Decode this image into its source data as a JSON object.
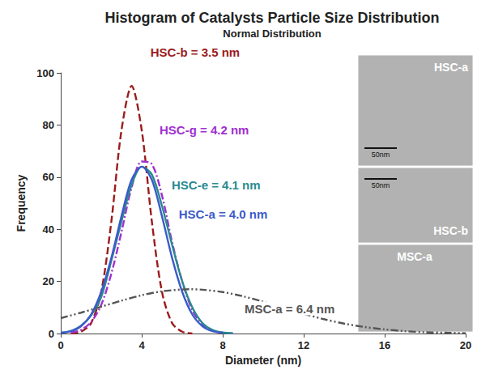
{
  "chart_data": {
    "type": "line",
    "title": "Histogram of Catalysts Particle Size Distribution",
    "subtitle": "Normal Distribution",
    "x_label": "Diameter (nm)",
    "y_label": "Frequency",
    "xlim": [
      0,
      20
    ],
    "xticks": [
      0,
      4,
      8,
      12,
      16,
      20
    ],
    "ylim": [
      0,
      100
    ],
    "yticks": [
      0,
      20,
      40,
      60,
      80,
      100
    ],
    "grid": false,
    "series": [
      {
        "name": "HSC-b",
        "color": "#9b1c1c",
        "line_style": "dashed",
        "x": [
          0.5,
          1.0,
          1.5,
          2.0,
          2.5,
          3.0,
          3.5,
          4.0,
          4.5,
          5.0,
          5.5,
          6.0,
          6.5
        ],
        "values": [
          0,
          0.7,
          4,
          16,
          43,
          78,
          95,
          78,
          43,
          16,
          4,
          0.7,
          0
        ]
      },
      {
        "name": "HSC-g",
        "color": "#a030d0",
        "line_style": "dashdot",
        "x": [
          0.5,
          1.0,
          1.5,
          2.0,
          2.5,
          3.0,
          3.5,
          4.0,
          4.5,
          5.0,
          5.5,
          6.0,
          6.5,
          7.0,
          7.5,
          8.0,
          8.5
        ],
        "values": [
          0.4,
          1.4,
          4.4,
          11,
          23,
          39,
          56,
          66,
          65,
          53,
          35,
          20,
          9,
          3.5,
          1.1,
          0.3,
          0.1
        ]
      },
      {
        "name": "HSC-e",
        "color": "#2a8a8f",
        "line_style": "solid",
        "x": [
          0,
          0.5,
          1.0,
          1.5,
          2.0,
          2.5,
          3.0,
          3.5,
          4.0,
          4.5,
          5.0,
          5.5,
          6.0,
          6.5,
          7.0,
          7.5,
          8.0,
          8.5
        ],
        "values": [
          0.3,
          1,
          3,
          7,
          14,
          28,
          43,
          57,
          64,
          61,
          49,
          34,
          20,
          10,
          4,
          1.4,
          0.4,
          0.1
        ]
      },
      {
        "name": "HSC-a",
        "color": "#3b5bc9",
        "line_style": "solid",
        "x": [
          0,
          0.5,
          1.0,
          1.5,
          2.0,
          2.5,
          3.0,
          3.5,
          4.0,
          4.5,
          5.0,
          5.5,
          6.0,
          6.5,
          7.0,
          7.5,
          8.0
        ],
        "values": [
          0.3,
          0.9,
          2.8,
          7.3,
          16,
          29,
          45,
          59,
          64,
          59,
          45,
          29,
          16,
          7.3,
          2.8,
          0.9,
          0.3
        ]
      },
      {
        "name": "MSC-a",
        "color": "#555555",
        "line_style": "dashdotdot",
        "x": [
          0,
          1,
          2,
          3,
          4,
          5,
          6,
          6.4,
          7,
          8,
          9,
          10,
          11,
          12,
          13,
          14,
          15,
          16,
          17,
          18,
          19,
          20
        ],
        "values": [
          5.9,
          8.0,
          10.3,
          12.6,
          14.7,
          16.2,
          16.9,
          17,
          16.8,
          15.9,
          14.3,
          12.2,
          9.8,
          7.6,
          5.5,
          3.8,
          2.5,
          1.6,
          0.9,
          0.5,
          0.3,
          0.1
        ]
      }
    ],
    "annotations": [
      {
        "text": "HSC-b = 3.5 nm",
        "series": "HSC-b",
        "x": 4.35,
        "y": 108
      },
      {
        "text": "HSC-g = 4.2 nm",
        "series": "HSC-g",
        "x": 4.8,
        "y": 78
      },
      {
        "text": "HSC-e = 4.1 nm",
        "series": "HSC-e",
        "x": 5.4,
        "y": 57
      },
      {
        "text": "HSC-a = 4.0 nm",
        "series": "HSC-a",
        "x": 5.75,
        "y": 45.7
      },
      {
        "text": "MSC-a = 6.4 nm",
        "series": "MSC-a",
        "x": 9.0,
        "y": 9.6
      }
    ],
    "insets": [
      {
        "label": "HSC-a",
        "scale_bar": "50nm"
      },
      {
        "label": "HSC-b",
        "scale_bar": "50nm"
      },
      {
        "label": "MSC-a"
      }
    ]
  }
}
